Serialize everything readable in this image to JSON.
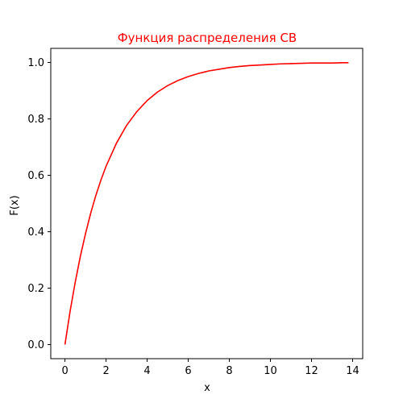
{
  "chart_data": {
    "type": "line",
    "title": "Функция распределения СВ",
    "xlabel": "x",
    "ylabel": "F(x)",
    "xlim": [
      -0.69,
      14.49
    ],
    "ylim": [
      -0.05,
      1.05
    ],
    "xticks": [
      0,
      2,
      4,
      6,
      8,
      10,
      12,
      14
    ],
    "xtick_labels": [
      "0",
      "2",
      "4",
      "6",
      "8",
      "10",
      "12",
      "14"
    ],
    "yticks": [
      0.0,
      0.2,
      0.4,
      0.6,
      0.8,
      1.0
    ],
    "ytick_labels": [
      "0.0",
      "0.2",
      "0.4",
      "0.6",
      "0.8",
      "1.0"
    ],
    "grid": false,
    "title_color": "#ff0000",
    "series": [
      {
        "color": "#ff0000",
        "x": [
          0,
          0.25,
          0.5,
          0.75,
          1,
          1.25,
          1.5,
          1.75,
          2,
          2.5,
          3,
          3.5,
          4,
          4.5,
          5,
          5.5,
          6,
          6.5,
          7,
          7.5,
          8,
          8.5,
          9,
          9.5,
          10,
          10.5,
          11,
          11.5,
          12,
          12.5,
          13,
          13.5,
          13.8
        ],
        "y": [
          0.0,
          0.118,
          0.221,
          0.313,
          0.393,
          0.465,
          0.528,
          0.583,
          0.632,
          0.713,
          0.777,
          0.826,
          0.865,
          0.895,
          0.918,
          0.936,
          0.95,
          0.961,
          0.97,
          0.976,
          0.982,
          0.986,
          0.989,
          0.991,
          0.993,
          0.995,
          0.996,
          0.997,
          0.998,
          0.998,
          0.998,
          0.999,
          0.999
        ]
      }
    ]
  }
}
